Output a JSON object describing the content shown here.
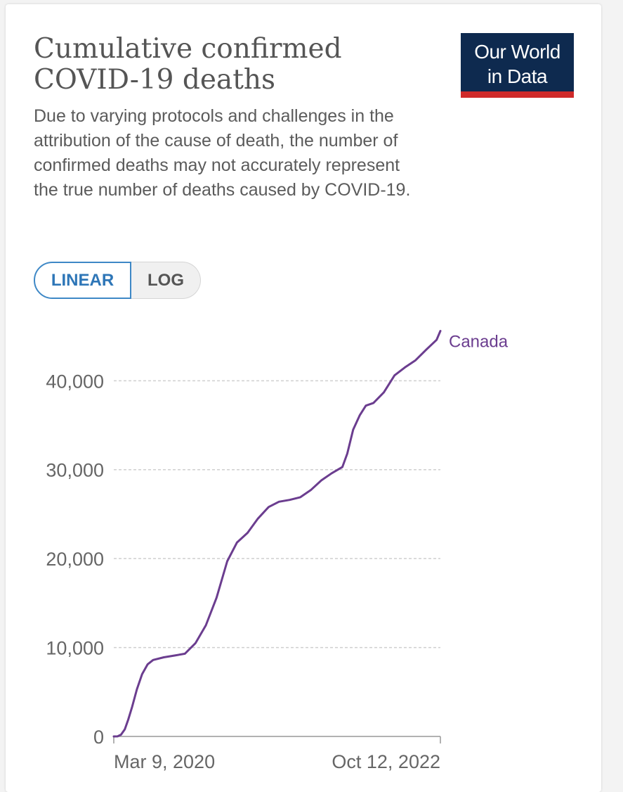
{
  "title": "Cumulative confirmed COVID-19 deaths",
  "subtitle": "Due to varying protocols and challenges in the attribution of the cause of death, the number of confirmed deaths may not accurately represent the true number of deaths caused by COVID-19.",
  "logo": {
    "line1": "Our World",
    "line2": "in Data"
  },
  "scale_toggle": {
    "linear": "LINEAR",
    "log": "LOG",
    "active": "linear"
  },
  "colors": {
    "series": "#6b3d8f",
    "logo_bg": "#0e2a4f",
    "logo_accent": "#cf2a2a",
    "toggle_active": "#2e76b7"
  },
  "chart_data": {
    "type": "line",
    "title": "Cumulative confirmed COVID-19 deaths",
    "ylim": [
      0,
      45800
    ],
    "y_ticks": [
      0,
      10000,
      20000,
      30000,
      40000
    ],
    "y_tick_labels": [
      "0",
      "10,000",
      "20,000",
      "30,000",
      "40,000"
    ],
    "x_tick_labels": [
      "Mar 9, 2020",
      "Oct 12, 2022"
    ],
    "grid": "horizontal-dashed",
    "series": [
      {
        "name": "Canada",
        "points": [
          [
            "2020-03-09",
            0
          ],
          [
            "2020-03-20",
            10
          ],
          [
            "2020-03-30",
            200
          ],
          [
            "2020-04-10",
            800
          ],
          [
            "2020-04-20",
            1900
          ],
          [
            "2020-05-01",
            3300
          ],
          [
            "2020-05-15",
            5300
          ],
          [
            "2020-05-30",
            7000
          ],
          [
            "2020-06-15",
            8100
          ],
          [
            "2020-07-01",
            8600
          ],
          [
            "2020-08-01",
            8900
          ],
          [
            "2020-09-01",
            9100
          ],
          [
            "2020-10-01",
            9300
          ],
          [
            "2020-11-01",
            10500
          ],
          [
            "2020-12-01",
            12500
          ],
          [
            "2021-01-01",
            15600
          ],
          [
            "2021-02-01",
            19700
          ],
          [
            "2021-03-01",
            21800
          ],
          [
            "2021-04-01",
            22900
          ],
          [
            "2021-05-01",
            24500
          ],
          [
            "2021-06-01",
            25800
          ],
          [
            "2021-07-01",
            26400
          ],
          [
            "2021-08-01",
            26600
          ],
          [
            "2021-09-01",
            26900
          ],
          [
            "2021-10-01",
            27700
          ],
          [
            "2021-11-01",
            28800
          ],
          [
            "2021-12-01",
            29600
          ],
          [
            "2022-01-01",
            30300
          ],
          [
            "2022-01-15",
            31800
          ],
          [
            "2022-02-01",
            34500
          ],
          [
            "2022-02-20",
            36100
          ],
          [
            "2022-03-10",
            37200
          ],
          [
            "2022-04-01",
            37500
          ],
          [
            "2022-05-01",
            38700
          ],
          [
            "2022-06-01",
            40600
          ],
          [
            "2022-07-01",
            41500
          ],
          [
            "2022-08-01",
            42300
          ],
          [
            "2022-09-01",
            43500
          ],
          [
            "2022-10-01",
            44600
          ],
          [
            "2022-10-12",
            45600
          ]
        ]
      }
    ]
  }
}
